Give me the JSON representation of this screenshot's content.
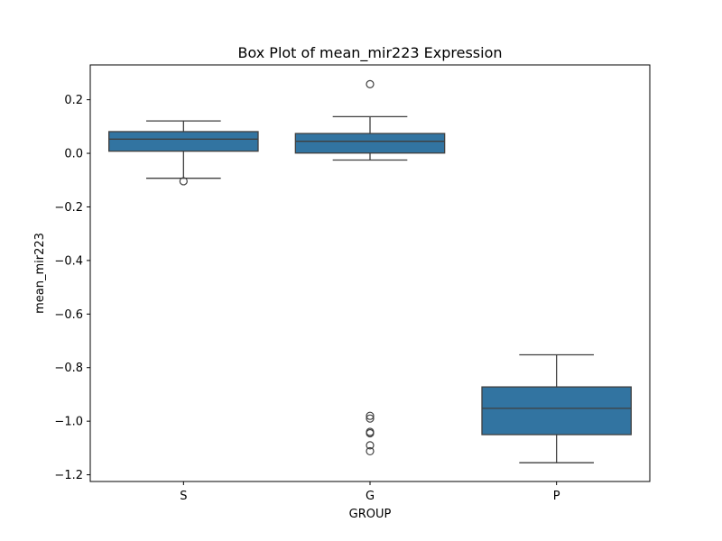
{
  "chart_data": {
    "type": "box",
    "title": "Box Plot of mean_mir223 Expression",
    "xlabel": "GROUP",
    "ylabel": "mean_mir223",
    "categories": [
      "S",
      "G",
      "P"
    ],
    "ylim": [
      -1.225,
      0.33
    ],
    "yticks": [
      0.2,
      0.0,
      -0.2,
      -0.4,
      -0.6,
      -0.8,
      -1.0,
      -1.2
    ],
    "ytick_labels": [
      "0.2",
      "0.0",
      "−0.2",
      "−0.4",
      "−0.6",
      "−0.8",
      "−1.0",
      "−1.2"
    ],
    "grid": false,
    "box_color": "#3274a1",
    "line_color": "#3f3f3f",
    "boxes": [
      {
        "category": "S",
        "whisker_low": -0.093,
        "q1": 0.008,
        "median": 0.053,
        "q3": 0.081,
        "whisker_high": 0.121,
        "outliers": [
          -0.104
        ]
      },
      {
        "category": "G",
        "whisker_low": -0.025,
        "q1": 0.001,
        "median": 0.045,
        "q3": 0.074,
        "whisker_high": 0.137,
        "outliers": [
          0.258,
          -0.98,
          -0.99,
          -1.04,
          -1.045,
          -1.09,
          -1.112
        ]
      },
      {
        "category": "P",
        "whisker_low": -1.155,
        "q1": -1.05,
        "median": -0.952,
        "q3": -0.872,
        "whisker_high": -0.752,
        "outliers": []
      }
    ]
  }
}
